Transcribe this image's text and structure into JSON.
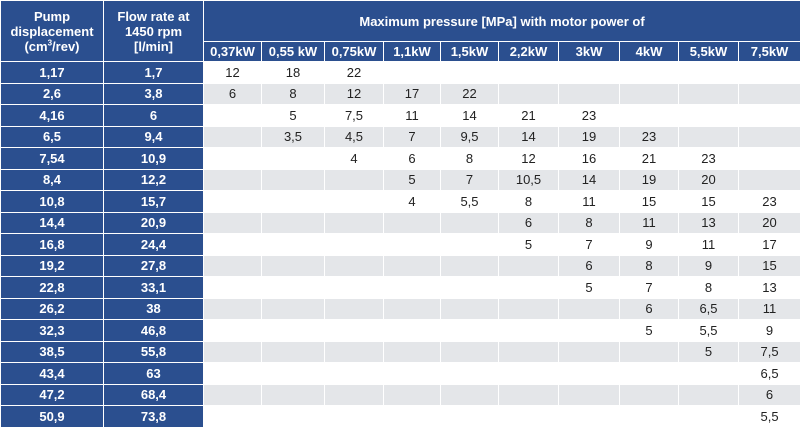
{
  "header": {
    "col1": {
      "line1": "Pump",
      "line2": "displacement",
      "line3_pre": "(cm",
      "line3_sup": "3",
      "line3_post": "/rev)"
    },
    "col2": {
      "line1": "Flow rate at",
      "line2": "1450 rpm",
      "line3": "[l/min]"
    },
    "title": "Maximum pressure [MPa] with motor power of",
    "powers": [
      "0,37kW",
      "0,55 kW",
      "0,75kW",
      "1,1kW",
      "1,5kW",
      "2,2kW",
      "3kW",
      "4kW",
      "5,5kW",
      "7,5kW"
    ]
  },
  "rows": [
    {
      "displacement": "1,17",
      "flow": "1,7",
      "pressures": [
        "12",
        "18",
        "22",
        "",
        "",
        "",
        "",
        "",
        "",
        ""
      ]
    },
    {
      "displacement": "2,6",
      "flow": "3,8",
      "pressures": [
        "6",
        "8",
        "12",
        "17",
        "22",
        "",
        "",
        "",
        "",
        ""
      ]
    },
    {
      "displacement": "4,16",
      "flow": "6",
      "pressures": [
        "",
        "5",
        "7,5",
        "11",
        "14",
        "21",
        "23",
        "",
        "",
        ""
      ]
    },
    {
      "displacement": "6,5",
      "flow": "9,4",
      "pressures": [
        "",
        "3,5",
        "4,5",
        "7",
        "9,5",
        "14",
        "19",
        "23",
        "",
        ""
      ]
    },
    {
      "displacement": "7,54",
      "flow": "10,9",
      "pressures": [
        "",
        "",
        "4",
        "6",
        "8",
        "12",
        "16",
        "21",
        "23",
        ""
      ]
    },
    {
      "displacement": "8,4",
      "flow": "12,2",
      "pressures": [
        "",
        "",
        "",
        "5",
        "7",
        "10,5",
        "14",
        "19",
        "20",
        ""
      ]
    },
    {
      "displacement": "10,8",
      "flow": "15,7",
      "pressures": [
        "",
        "",
        "",
        "4",
        "5,5",
        "8",
        "11",
        "15",
        "15",
        "23"
      ]
    },
    {
      "displacement": "14,4",
      "flow": "20,9",
      "pressures": [
        "",
        "",
        "",
        "",
        "",
        "6",
        "8",
        "11",
        "13",
        "20"
      ]
    },
    {
      "displacement": "16,8",
      "flow": "24,4",
      "pressures": [
        "",
        "",
        "",
        "",
        "",
        "5",
        "7",
        "9",
        "11",
        "17"
      ]
    },
    {
      "displacement": "19,2",
      "flow": "27,8",
      "pressures": [
        "",
        "",
        "",
        "",
        "",
        "",
        "6",
        "8",
        "9",
        "15"
      ]
    },
    {
      "displacement": "22,8",
      "flow": "33,1",
      "pressures": [
        "",
        "",
        "",
        "",
        "",
        "",
        "5",
        "7",
        "8",
        "13"
      ]
    },
    {
      "displacement": "26,2",
      "flow": "38",
      "pressures": [
        "",
        "",
        "",
        "",
        "",
        "",
        "",
        "6",
        "6,5",
        "11"
      ]
    },
    {
      "displacement": "32,3",
      "flow": "46,8",
      "pressures": [
        "",
        "",
        "",
        "",
        "",
        "",
        "",
        "5",
        "5,5",
        "9"
      ]
    },
    {
      "displacement": "38,5",
      "flow": "55,8",
      "pressures": [
        "",
        "",
        "",
        "",
        "",
        "",
        "",
        "",
        "5",
        "7,5"
      ]
    },
    {
      "displacement": "43,4",
      "flow": "63",
      "pressures": [
        "",
        "",
        "",
        "",
        "",
        "",
        "",
        "",
        "",
        "6,5"
      ]
    },
    {
      "displacement": "47,2",
      "flow": "68,4",
      "pressures": [
        "",
        "",
        "",
        "",
        "",
        "",
        "",
        "",
        "",
        "6"
      ]
    },
    {
      "displacement": "50,9",
      "flow": "73,8",
      "pressures": [
        "",
        "",
        "",
        "",
        "",
        "",
        "",
        "",
        "",
        "5,5"
      ]
    }
  ]
}
